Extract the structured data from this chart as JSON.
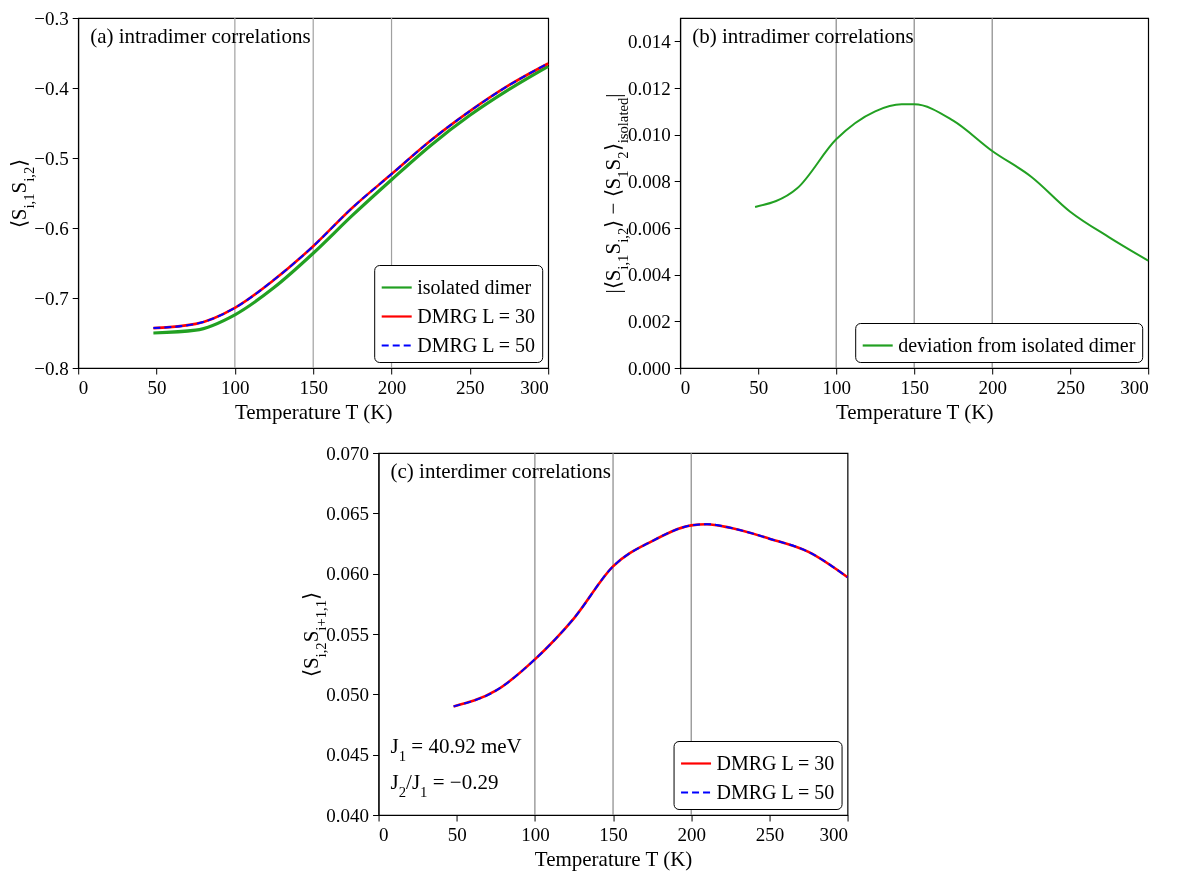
{
  "chart_data": [
    {
      "type": "line",
      "title": "(a) intradimer correlations",
      "xlabel": "Temperature T (K)",
      "ylabel": "⟨S$_{i,1}$S$_{i,2}$⟩",
      "x": [
        48,
        75,
        100,
        125,
        150,
        175,
        200,
        225,
        250,
        275,
        300
      ],
      "series": [
        {
          "name": "isolated dimer",
          "color": "#22a022",
          "line_style": "solid",
          "values": [
            -0.75,
            -0.746,
            -0.724,
            -0.685,
            -0.636,
            -0.582,
            -0.531,
            -0.482,
            -0.439,
            -0.402,
            -0.369
          ]
        },
        {
          "name": "DMRG L = 30",
          "color": "#ff0000",
          "line_style": "solid",
          "values": [
            -0.743,
            -0.737,
            -0.714,
            -0.674,
            -0.626,
            -0.571,
            -0.523,
            -0.475,
            -0.433,
            -0.396,
            -0.365
          ]
        },
        {
          "name": "DMRG L = 50",
          "color": "#0000ff",
          "line_style": "dashed",
          "values": [
            -0.743,
            -0.737,
            -0.714,
            -0.674,
            -0.626,
            -0.571,
            -0.523,
            -0.475,
            -0.433,
            -0.396,
            -0.365
          ]
        }
      ],
      "xlim": [
        0,
        300
      ],
      "xticks": [
        0,
        50,
        100,
        150,
        200,
        250,
        300
      ],
      "ylim": [
        -0.8,
        -0.3
      ],
      "yticks": [
        -0.8,
        -0.7,
        -0.6,
        -0.5,
        -0.4,
        -0.3
      ],
      "ref_lines": [
        {
          "axis": "x",
          "value": 100,
          "color": "#a0a0a0"
        },
        {
          "axis": "x",
          "value": 150,
          "color": "#a0a0a0"
        },
        {
          "axis": "x",
          "value": 200,
          "color": "#a0a0a0"
        }
      ],
      "legend": "bottom right"
    },
    {
      "type": "line",
      "title": "(b) intradimer correlations",
      "xlabel": "Temperature T (K)",
      "ylabel": "|⟨S$_{i,1}$S$_{i,2}$⟩ − ⟨S$_{1}$S$_{2}$⟩$_{isolated}$|",
      "x": [
        48,
        75,
        100,
        125,
        142,
        150,
        175,
        200,
        225,
        250,
        275,
        300
      ],
      "series": [
        {
          "name": "deviation from isolated dimer",
          "color": "#22a022",
          "line_style": "solid",
          "values": [
            0.0069,
            0.0077,
            0.0098,
            0.011,
            0.0113,
            0.0113,
            0.0106,
            0.0093,
            0.0082,
            0.0067,
            0.0056,
            0.0046
          ]
        }
      ],
      "xlim": [
        0,
        300
      ],
      "xticks": [
        0,
        50,
        100,
        150,
        200,
        250,
        300
      ],
      "ylim": [
        0,
        0.015
      ],
      "yticks": [
        {
          "value": 0,
          "label": "0.000"
        },
        {
          "value": 0.002,
          "label": "0.002"
        },
        {
          "value": 0.004,
          "label": "0.004"
        },
        {
          "value": 0.006,
          "label": "0.006"
        },
        {
          "value": 0.008,
          "label": "0.008"
        },
        {
          "value": 0.01,
          "label": "0.010"
        },
        {
          "value": 0.012,
          "label": "0.012"
        },
        {
          "value": 0.014,
          "label": "0.014"
        }
      ],
      "ref_lines": [
        {
          "axis": "x",
          "value": 100,
          "color": "#888888"
        },
        {
          "axis": "x",
          "value": 150,
          "color": "#888888"
        },
        {
          "axis": "x",
          "value": 200,
          "color": "#888888"
        }
      ],
      "legend": "bottom right"
    },
    {
      "type": "line",
      "title": "(c) interdimer correlations",
      "xlabel": "Temperature T (K)",
      "ylabel": "⟨S$_{i,2}$S$_{i+1,1}$⟩",
      "x": [
        48,
        75,
        100,
        125,
        150,
        175,
        200,
        210,
        225,
        250,
        275,
        300
      ],
      "series": [
        {
          "name": "DMRG L = 30",
          "color": "#ff0000",
          "line_style": "solid",
          "values": [
            0.049,
            0.0503,
            0.0529,
            0.0563,
            0.0606,
            0.0627,
            0.064,
            0.0641,
            0.0638,
            0.0629,
            0.0618,
            0.0597
          ]
        },
        {
          "name": "DMRG L = 50",
          "color": "#0000ff",
          "line_style": "dashed",
          "values": [
            0.049,
            0.0503,
            0.0529,
            0.0563,
            0.0606,
            0.0627,
            0.064,
            0.0641,
            0.0638,
            0.0629,
            0.0618,
            0.0597
          ]
        }
      ],
      "xlim": [
        0,
        300
      ],
      "xticks": [
        0,
        50,
        100,
        150,
        200,
        250,
        300
      ],
      "ylim": [
        0.04,
        0.07
      ],
      "yticks": [
        {
          "value": 0.04,
          "label": "0.040"
        },
        {
          "value": 0.045,
          "label": "0.045"
        },
        {
          "value": 0.05,
          "label": "0.050"
        },
        {
          "value": 0.055,
          "label": "0.055"
        },
        {
          "value": 0.06,
          "label": "0.060"
        },
        {
          "value": 0.065,
          "label": "0.065"
        },
        {
          "value": 0.07,
          "label": "0.070"
        }
      ],
      "ref_lines": [
        {
          "axis": "x",
          "value": 100,
          "color": "#888888"
        },
        {
          "axis": "x",
          "value": 150,
          "color": "#888888"
        },
        {
          "axis": "x",
          "value": 200,
          "color": "#888888"
        }
      ],
      "annotations": [
        "J$_{1}$ = 40.92 meV",
        "J$_{2}$/J$_{1}$ = −0.29"
      ],
      "legend": "bottom right"
    }
  ]
}
